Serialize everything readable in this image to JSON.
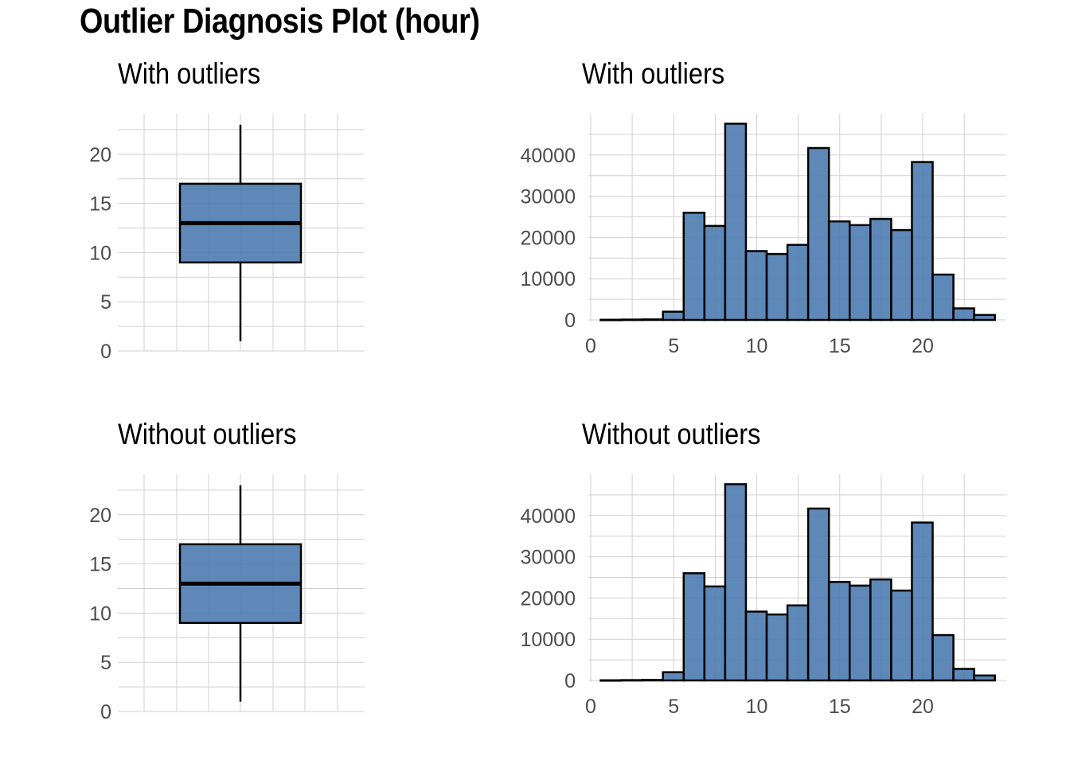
{
  "title": "Outlier Diagnosis Plot (hour)",
  "colors": {
    "fill": "#4B7BB0",
    "outline": "#000000",
    "grid": "#D0D0D0",
    "tick_text": "#4D4D4D"
  },
  "chart_data": [
    {
      "type": "box",
      "title": "With outliers",
      "xlabel": "",
      "ylabel": "",
      "ylim": [
        0,
        23
      ],
      "y_ticks": [
        "0",
        "5",
        "10",
        "15",
        "20"
      ],
      "box": {
        "min": 1,
        "q1": 9,
        "median": 13,
        "q3": 17,
        "max": 23
      }
    },
    {
      "type": "bar",
      "title": "With outliers",
      "xlabel": "",
      "ylabel": "",
      "xlim": [
        0,
        23.8
      ],
      "ylim": [
        0,
        47500
      ],
      "x_ticks": [
        "0",
        "5",
        "10",
        "15",
        "20"
      ],
      "y_ticks": [
        "0",
        "10000",
        "20000",
        "30000",
        "40000"
      ],
      "bin_width": 1.25,
      "bins_left": [
        0.6,
        1.85,
        3.1,
        4.35,
        5.6,
        6.85,
        8.1,
        9.35,
        10.6,
        11.85,
        13.1,
        14.35,
        15.6,
        16.85,
        18.1,
        19.35,
        20.6,
        21.85,
        23.1
      ],
      "values": [
        40,
        80,
        120,
        2000,
        26000,
        22800,
        47600,
        16700,
        16000,
        18200,
        41700,
        23900,
        23000,
        24500,
        21800,
        38300,
        11000,
        2800,
        1200
      ]
    },
    {
      "type": "box",
      "title": "Without outliers",
      "xlabel": "",
      "ylabel": "",
      "ylim": [
        0,
        23
      ],
      "y_ticks": [
        "0",
        "5",
        "10",
        "15",
        "20"
      ],
      "box": {
        "min": 1,
        "q1": 9,
        "median": 13,
        "q3": 17,
        "max": 23
      }
    },
    {
      "type": "bar",
      "title": "Without outliers",
      "xlabel": "",
      "ylabel": "",
      "xlim": [
        0,
        23.8
      ],
      "ylim": [
        0,
        47500
      ],
      "x_ticks": [
        "0",
        "5",
        "10",
        "15",
        "20"
      ],
      "y_ticks": [
        "0",
        "10000",
        "20000",
        "30000",
        "40000"
      ],
      "bin_width": 1.25,
      "bins_left": [
        0.6,
        1.85,
        3.1,
        4.35,
        5.6,
        6.85,
        8.1,
        9.35,
        10.6,
        11.85,
        13.1,
        14.35,
        15.6,
        16.85,
        18.1,
        19.35,
        20.6,
        21.85,
        23.1
      ],
      "values": [
        40,
        80,
        120,
        2000,
        26000,
        22800,
        47600,
        16700,
        16000,
        18200,
        41700,
        23900,
        23000,
        24500,
        21800,
        38300,
        11000,
        2800,
        1200
      ]
    }
  ]
}
